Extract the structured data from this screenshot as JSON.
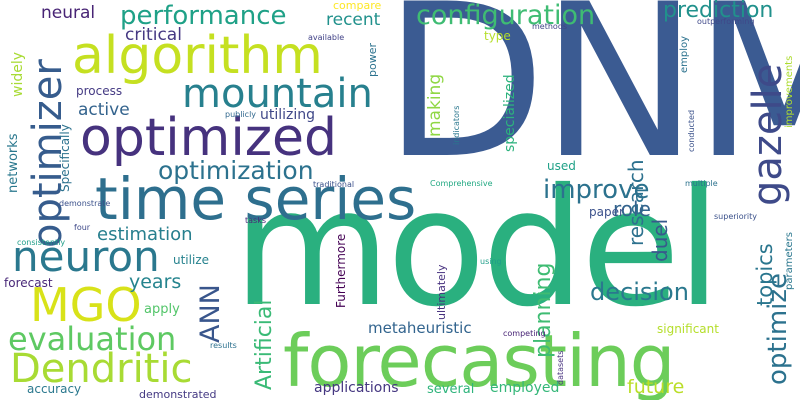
{
  "words": [
    {
      "text": "DNM",
      "color": "#3b5b92"
    },
    {
      "text": "model",
      "color": "#2ab07f"
    },
    {
      "text": "forecasting",
      "color": "#6ccd5a"
    },
    {
      "text": "time series",
      "color": "#2e6f8e"
    },
    {
      "text": "optimized",
      "color": "#46327e"
    },
    {
      "text": "algorithm",
      "color": "#c5e021"
    },
    {
      "text": "mountain",
      "color": "#27808e"
    },
    {
      "text": "optimizer",
      "color": "#365c8d"
    },
    {
      "text": "gazelle",
      "color": "#3e4a89"
    },
    {
      "text": "neuron",
      "color": "#2a788e"
    },
    {
      "text": "MGO",
      "color": "#d8e219"
    },
    {
      "text": "Dendritic",
      "color": "#a8db34"
    },
    {
      "text": "evaluation",
      "color": "#5ec962"
    },
    {
      "text": "configuration",
      "color": "#3fbc73"
    },
    {
      "text": "performance",
      "color": "#1fa187"
    },
    {
      "text": "prediction",
      "color": "#21918c"
    },
    {
      "text": "optimization",
      "color": "#2c728e"
    },
    {
      "text": "improve",
      "color": "#2c728e"
    },
    {
      "text": "optimize",
      "color": "#2c728e"
    },
    {
      "text": "ANN",
      "color": "#39568c"
    },
    {
      "text": "Artificial",
      "color": "#3aba76"
    },
    {
      "text": "planning",
      "color": "#3fbc73"
    },
    {
      "text": "decision",
      "color": "#2a788e"
    },
    {
      "text": "topics",
      "color": "#2a768e"
    },
    {
      "text": "research",
      "color": "#2d718e"
    },
    {
      "text": "duel",
      "color": "#38598c"
    },
    {
      "text": "role",
      "color": "#33638d"
    },
    {
      "text": "estimation",
      "color": "#277f8e"
    },
    {
      "text": "years",
      "color": "#25848e"
    },
    {
      "text": "future",
      "color": "#bade28"
    },
    {
      "text": "critical",
      "color": "#453882"
    },
    {
      "text": "active",
      "color": "#33638d"
    },
    {
      "text": "neural",
      "color": "#482475"
    },
    {
      "text": "recent",
      "color": "#21918c"
    },
    {
      "text": "making",
      "color": "#8fd744"
    },
    {
      "text": "specialized",
      "color": "#2db27d"
    },
    {
      "text": "metaheuristic",
      "color": "#32648e"
    },
    {
      "text": "applications",
      "color": "#453781"
    },
    {
      "text": "employed",
      "color": "#35b779"
    },
    {
      "text": "several",
      "color": "#2fb47c"
    },
    {
      "text": "utilizing",
      "color": "#3f4788"
    },
    {
      "text": "widely",
      "color": "#a8db34"
    },
    {
      "text": "networks",
      "color": "#2a788e"
    },
    {
      "text": "process",
      "color": "#443a83"
    },
    {
      "text": "Specifically",
      "color": "#2c728e"
    },
    {
      "text": "accuracy",
      "color": "#2a788e"
    },
    {
      "text": "demonstrated",
      "color": "#443983"
    },
    {
      "text": "forecast",
      "color": "#482878"
    },
    {
      "text": "apply",
      "color": "#52c569"
    },
    {
      "text": "utilize",
      "color": "#26828e"
    },
    {
      "text": "Furthermore",
      "color": "#440154"
    },
    {
      "text": "ultimately",
      "color": "#46307e"
    },
    {
      "text": "significant",
      "color": "#b5de2b"
    },
    {
      "text": "paper",
      "color": "#3b518b"
    },
    {
      "text": "used",
      "color": "#1fa187"
    },
    {
      "text": "type",
      "color": "#b5de2b"
    },
    {
      "text": "compare",
      "color": "#fde725"
    },
    {
      "text": "power",
      "color": "#2c728e"
    },
    {
      "text": "available",
      "color": "#414287"
    },
    {
      "text": "publicly",
      "color": "#31688e"
    },
    {
      "text": "indicators",
      "color": "#2a778e"
    },
    {
      "text": "methods",
      "color": "#414487"
    },
    {
      "text": "outperforming",
      "color": "#3f4889"
    },
    {
      "text": "employ",
      "color": "#2c728e"
    },
    {
      "text": "improvements",
      "color": "#addc30"
    },
    {
      "text": "conducted",
      "color": "#3b528b"
    },
    {
      "text": "multiple",
      "color": "#2c728e"
    },
    {
      "text": "Comprehensive",
      "color": "#23a983"
    },
    {
      "text": "traditional",
      "color": "#3b518b"
    },
    {
      "text": "tasks",
      "color": "#482878"
    },
    {
      "text": "demonstrate",
      "color": "#3b518b"
    },
    {
      "text": "consistently",
      "color": "#1f9e89"
    },
    {
      "text": "four",
      "color": "#3e4989"
    },
    {
      "text": "superiority",
      "color": "#3b518b"
    },
    {
      "text": "parameters",
      "color": "#2a778e"
    },
    {
      "text": "using",
      "color": "#1f9e89"
    },
    {
      "text": "competing",
      "color": "#482475"
    },
    {
      "text": "results",
      "color": "#2c718e"
    },
    {
      "text": "datasets",
      "color": "#46307e"
    }
  ]
}
